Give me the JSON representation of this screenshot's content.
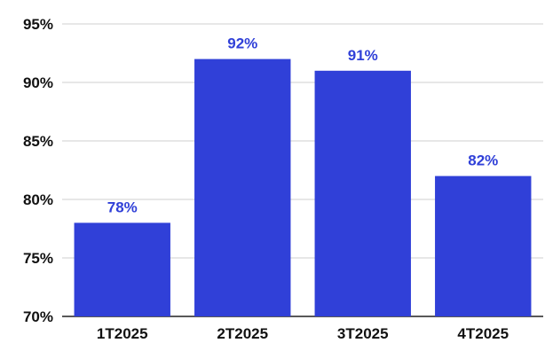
{
  "chart_data": {
    "type": "bar",
    "title": "",
    "xlabel": "",
    "ylabel": "",
    "categories": [
      "1T2025",
      "2T2025",
      "3T2025",
      "4T2025"
    ],
    "values": [
      78,
      92,
      91,
      82
    ],
    "data_labels": [
      "78%",
      "92%",
      "91%",
      "82%"
    ],
    "ylim": [
      70,
      95
    ],
    "yticks": [
      70,
      75,
      80,
      85,
      90,
      95
    ],
    "ytick_labels": [
      "70%",
      "75%",
      "80%",
      "85%",
      "90%",
      "95%"
    ],
    "grid": true,
    "legend": "none",
    "bar_color": "#3040d8",
    "label_color": "#3040d8"
  }
}
